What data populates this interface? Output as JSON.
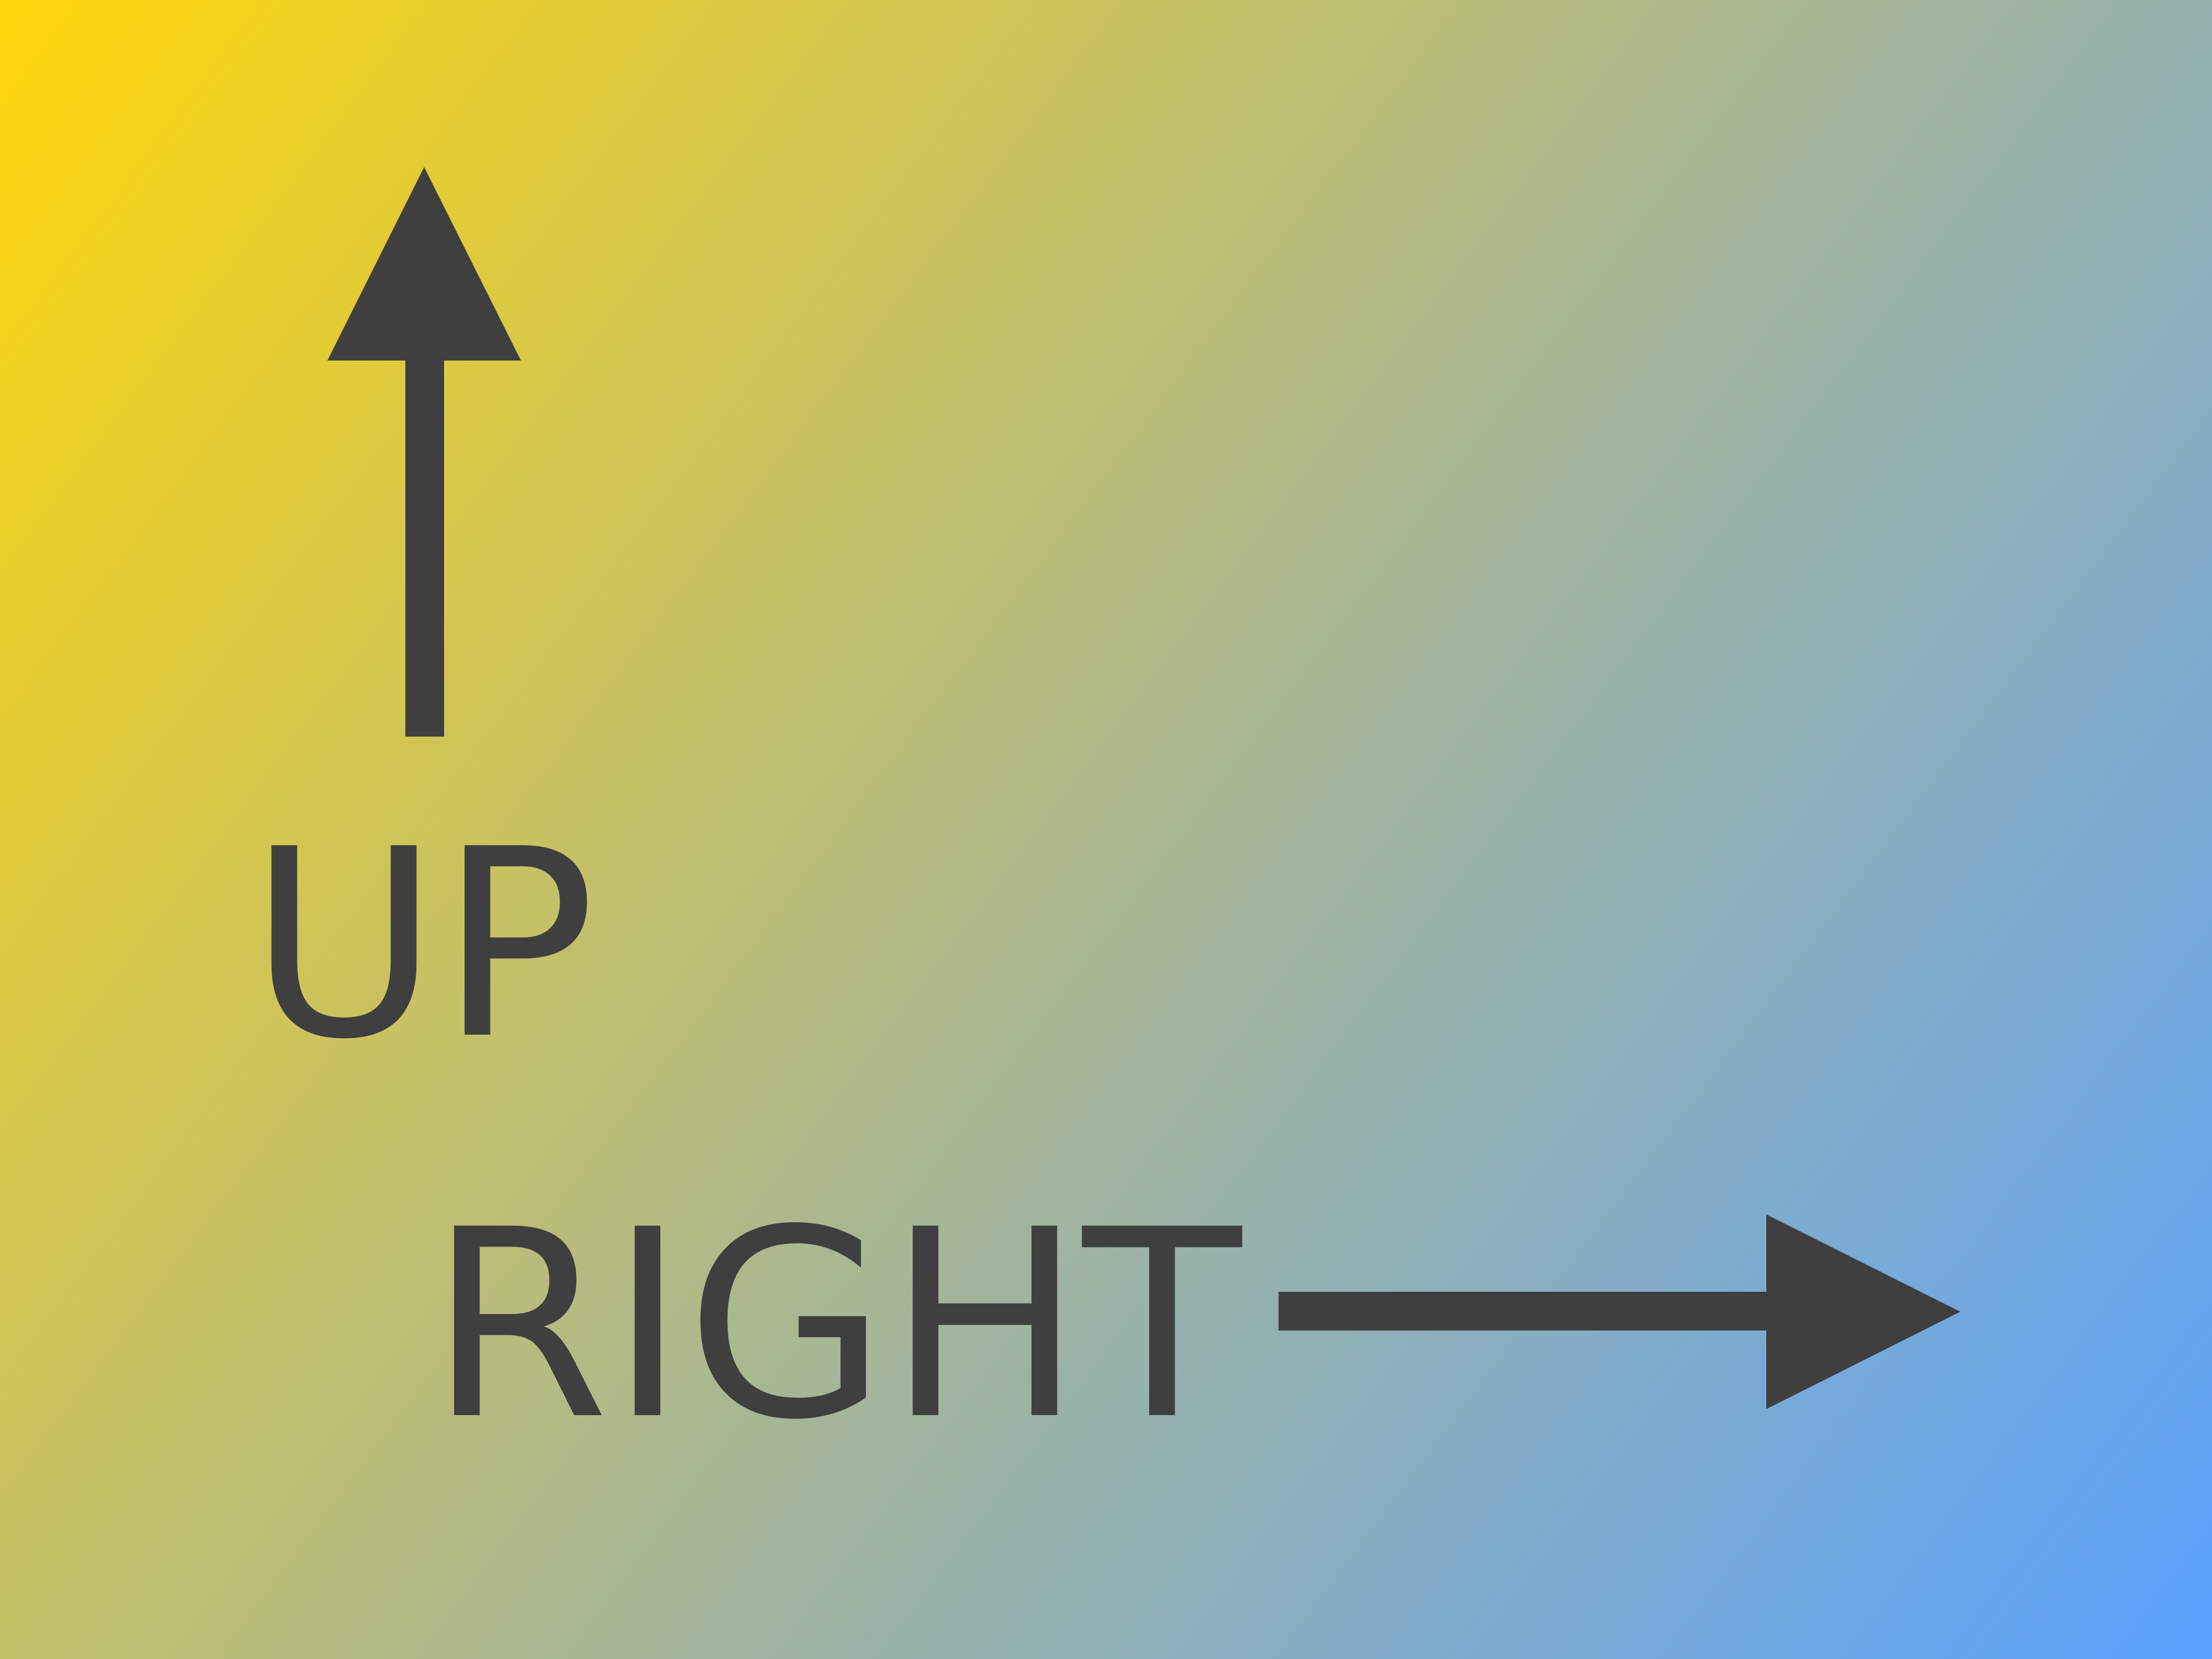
{
  "colors": {
    "background_start": "#FFD60A",
    "background_mid": "#A4B59A",
    "background_end": "#5AA2FF",
    "ink": "#3F3F3F"
  },
  "icons": {
    "up_arrow": "arrow-up-icon",
    "right_arrow": "arrow-right-icon"
  },
  "labels": {
    "up": "UP",
    "right": "RIGHT"
  }
}
